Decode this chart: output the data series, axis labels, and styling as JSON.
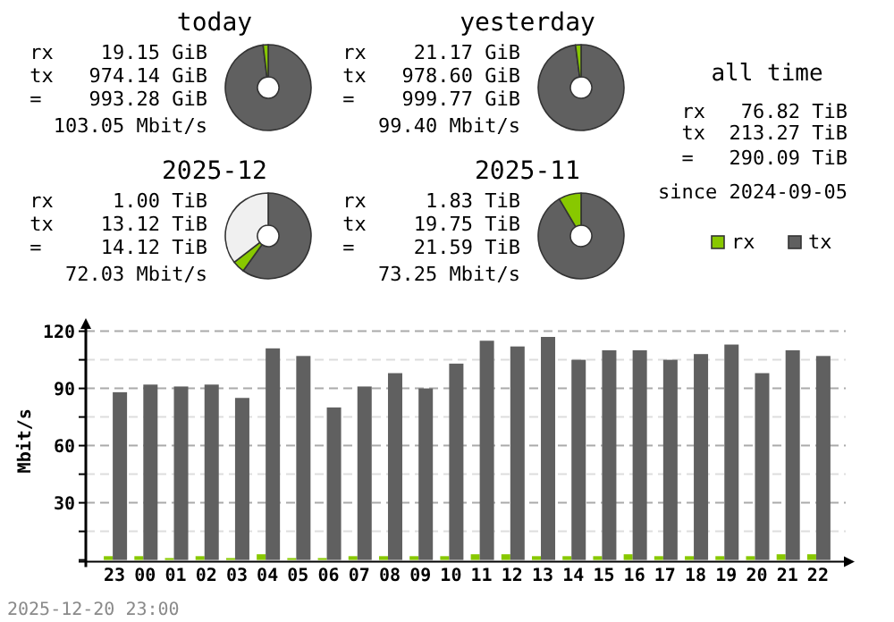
{
  "chart_data": [
    {
      "type": "donut",
      "title": "today",
      "categories": [
        null,
        null
      ],
      "values": [
        98.1,
        1.9
      ],
      "colors": [
        "#606060",
        "#88c800"
      ],
      "annotations": [
        "rx    19.15 GiB",
        "tx   974.14 GiB",
        "=    993.28 GiB",
        "103.05 Mbit/s"
      ]
    },
    {
      "type": "donut",
      "title": "yesterday",
      "categories": [
        null,
        null
      ],
      "values": [
        97.9,
        2.1
      ],
      "colors": [
        "#606060",
        "#88c800"
      ],
      "annotations": [
        "rx    21.17 GiB",
        "tx   978.60 GiB",
        "=    999.77 GiB",
        "99.40 Mbit/s"
      ]
    },
    {
      "type": "other",
      "title": "all time",
      "annotations": [
        "rx   76.82 TiB",
        "tx  213.27 TiB",
        "=   290.09 TiB",
        "since 2024-09-05"
      ]
    },
    {
      "type": "donut",
      "title": "2025-12",
      "categories": [
        null,
        null,
        null
      ],
      "values": [
        59.9,
        4.6,
        35.5
      ],
      "colors": [
        "#606060",
        "#88c800",
        "#f0f0f0"
      ],
      "annotations": [
        "rx     1.00 TiB",
        "tx    13.12 TiB",
        "=     14.12 TiB",
        "72.03 Mbit/s"
      ]
    },
    {
      "type": "donut",
      "title": "2025-11",
      "categories": [
        null,
        null
      ],
      "values": [
        91.5,
        8.5
      ],
      "colors": [
        "#606060",
        "#88c800"
      ],
      "annotations": [
        "rx     1.83 TiB",
        "tx    19.75 TiB",
        "=     21.59 TiB",
        "73.25 Mbit/s"
      ]
    },
    {
      "type": "bar",
      "ylabel": "Mbit/s",
      "categories": [
        "23",
        "00",
        "01",
        "02",
        "03",
        "04",
        "05",
        "06",
        "07",
        "08",
        "09",
        "10",
        "11",
        "12",
        "13",
        "14",
        "15",
        "16",
        "17",
        "18",
        "19",
        "20",
        "21",
        "22"
      ],
      "series": [
        {
          "name": "rx",
          "color": "#88c800",
          "values": [
            2,
            2,
            1,
            2,
            1,
            3,
            1,
            1,
            2,
            2,
            2,
            2,
            3,
            3,
            2,
            2,
            2,
            3,
            2,
            2,
            2,
            2,
            3,
            3
          ]
        },
        {
          "name": "tx",
          "color": "#606060",
          "values": [
            88,
            92,
            91,
            92,
            85,
            111,
            107,
            80,
            91,
            98,
            90,
            103,
            115,
            112,
            117,
            105,
            110,
            110,
            105,
            108,
            113,
            98,
            110,
            107
          ]
        }
      ],
      "ylim": [
        0,
        125
      ],
      "yticks": [
        {
          "value": 0,
          "label": null
        },
        {
          "value": 15,
          "label": null
        },
        30,
        {
          "value": 45,
          "label": null
        },
        60,
        {
          "value": 75,
          "label": null
        },
        90,
        {
          "value": 105,
          "label": null
        },
        120
      ],
      "grid": "y",
      "legend": "top right",
      "annotations": [
        "2025-12-20 23:00"
      ]
    }
  ]
}
